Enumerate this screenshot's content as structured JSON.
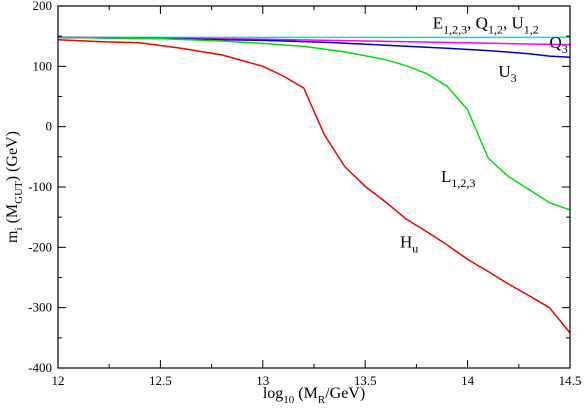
{
  "chart_data": {
    "type": "line",
    "xlabel": {
      "main": "log",
      "sub1": "10",
      "mid": " (M",
      "sub2": "R",
      "end": "/GeV)"
    },
    "ylabel": {
      "main": "m",
      "sub1": "i",
      "mid": " (M",
      "sub2": "GUT",
      "end": ") (GeV)"
    },
    "xlim": [
      12,
      14.5
    ],
    "ylim": [
      -400,
      200
    ],
    "xticks": [
      12,
      12.5,
      13,
      13.5,
      14,
      14.5
    ],
    "xtick_labels": [
      "12",
      "12.5",
      "13",
      "13.5",
      "14",
      "14.5"
    ],
    "yticks": [
      -400,
      -300,
      -200,
      -100,
      0,
      100,
      200
    ],
    "ytick_labels": [
      "-400",
      "-300",
      "-200",
      "-100",
      "0",
      "100",
      "200"
    ],
    "grid": false,
    "series": [
      {
        "name": "E_{1,2,3}, Q_{1,2}, U_{1,2}",
        "color": "#00e0e0",
        "x": [
          12.0,
          12.5,
          13.0,
          13.5,
          14.0,
          14.5
        ],
        "y": [
          148,
          148,
          148,
          148,
          148,
          148
        ]
      },
      {
        "name": "Q_3",
        "color": "#ff00ff",
        "x": [
          12.0,
          12.5,
          13.0,
          13.5,
          14.0,
          14.3,
          14.5
        ],
        "y": [
          148,
          147,
          145,
          142,
          139,
          137,
          136
        ]
      },
      {
        "name": "U_3",
        "color": "#0000cc",
        "x": [
          12.0,
          12.5,
          13.0,
          13.3,
          13.6,
          13.9,
          14.1,
          14.3,
          14.4,
          14.5
        ],
        "y": [
          148,
          146,
          143,
          140,
          135,
          130,
          126,
          121,
          117,
          115
        ]
      },
      {
        "name": "L_{1,2,3}",
        "color": "#00dd00",
        "x": [
          12.0,
          12.5,
          12.8,
          13.0,
          13.2,
          13.4,
          13.6,
          13.7,
          13.8,
          13.9,
          14.0,
          14.1,
          14.2,
          14.3,
          14.4,
          14.5
        ],
        "y": [
          148,
          146,
          142,
          138,
          133,
          124,
          111,
          101,
          88,
          67,
          28,
          -52,
          -83,
          -104,
          -126,
          -138
        ]
      },
      {
        "name": "H_u",
        "color": "#ee0000",
        "x": [
          12.0,
          12.2,
          12.4,
          12.6,
          12.8,
          13.0,
          13.1,
          13.2,
          13.3,
          13.4,
          13.5,
          13.6,
          13.7,
          13.8,
          13.9,
          14.0,
          14.1,
          14.2,
          14.3,
          14.4,
          14.5
        ],
        "y": [
          144,
          141,
          139,
          130,
          119,
          100,
          84,
          64,
          -13,
          -66,
          -99,
          -125,
          -153,
          -174,
          -196,
          -220,
          -240,
          -261,
          -280,
          -300,
          -342
        ]
      }
    ],
    "labels": [
      {
        "series": 0,
        "parts": [
          [
            "E",
            "1,2,3"
          ],
          [
            ", Q",
            "1,2"
          ],
          [
            ", U",
            "1,2"
          ]
        ],
        "x": 13.83,
        "y": 163
      },
      {
        "series": 1,
        "parts": [
          [
            "Q",
            "3"
          ]
        ],
        "x": 14.4,
        "y": 130
      },
      {
        "series": 2,
        "parts": [
          [
            "U",
            "3"
          ]
        ],
        "x": 14.15,
        "y": 82
      },
      {
        "series": 3,
        "parts": [
          [
            "L",
            "1,2,3"
          ]
        ],
        "x": 13.87,
        "y": -92
      },
      {
        "series": 4,
        "parts": [
          [
            "H",
            "u"
          ]
        ],
        "x": 13.67,
        "y": -200
      }
    ]
  }
}
